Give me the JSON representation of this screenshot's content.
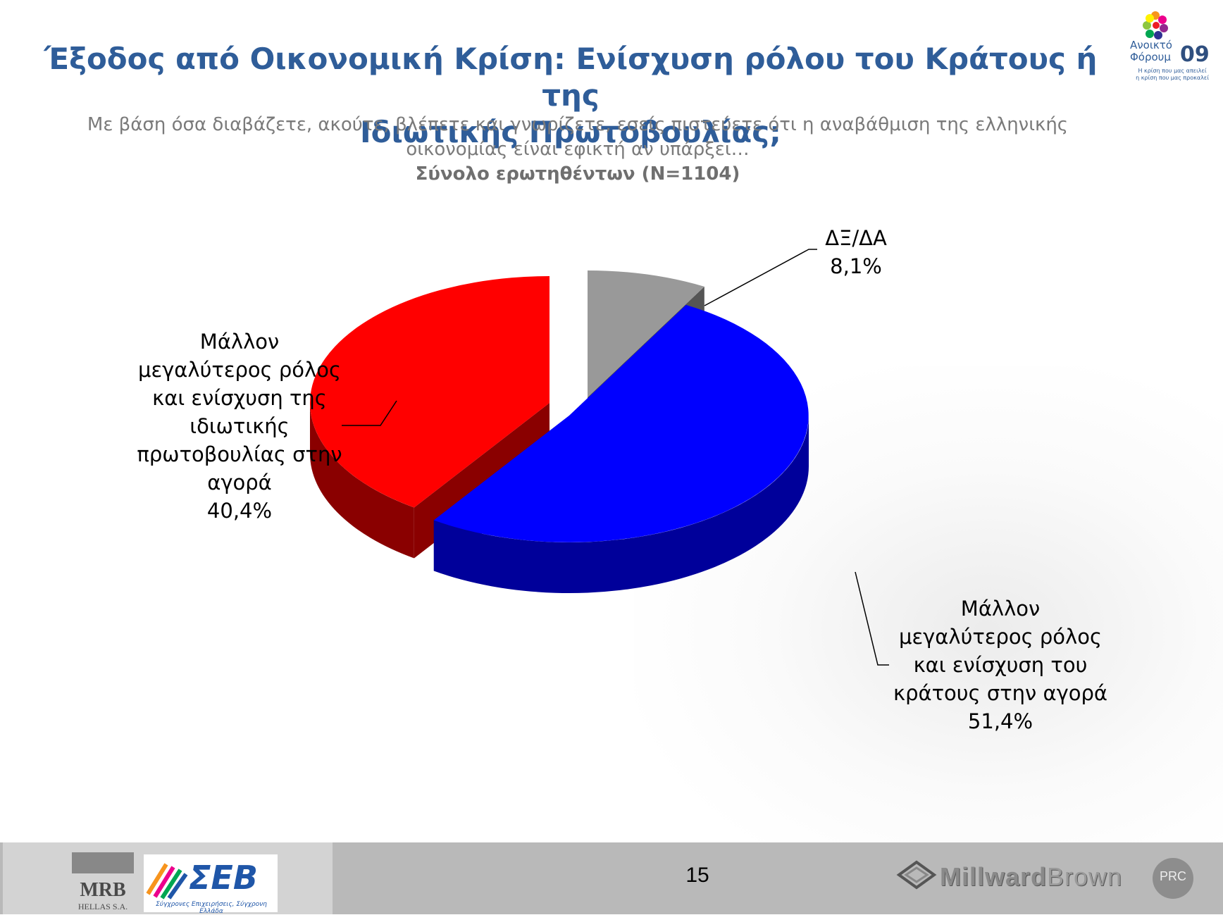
{
  "title": {
    "line1": "Έξοδος από Οικονομική Κρίση: Ενίσχυση ρόλου του Κράτους ή της",
    "line2": "Ιδιωτικής Πρωτοβουλίας;"
  },
  "subtitle": {
    "line1": "Με βάση όσα διαβάζετε, ακούτε, βλέπετε και γνωρίζετε, εσείς πιστεύετε ότι η αναβάθμιση της ελληνικής",
    "line2": "οικονομίας είναι εφικτή αν υπάρξει…",
    "line3": "Σύνολο ερωτηθέντων (N=1104)"
  },
  "forum_logo": {
    "line1": "Ανοικτό",
    "line2": "Φόρουμ",
    "year": "09",
    "tagline1": "Η κρίση που μας απειλεί",
    "tagline2": "η κρίση που μας προκαλεί"
  },
  "chart_data": {
    "type": "pie",
    "style": "3d-exploded",
    "slices": [
      {
        "label_lines": [
          "Μάλλον",
          "μεγαλύτερος ρόλος",
          "και ενίσχυση του",
          "κράτους στην αγορά"
        ],
        "value": 51.4,
        "value_label": "51,4%",
        "color": "#0000ff",
        "side_color": "#00009a"
      },
      {
        "label_lines": [
          "Μάλλον",
          "μεγαλύτερος ρόλος",
          "και ενίσχυση της",
          "ιδιωτικής",
          "πρωτοβουλίας στην",
          "αγορά"
        ],
        "value": 40.4,
        "value_label": "40,4%",
        "color": "#ff0000",
        "side_color": "#8a0000"
      },
      {
        "label_lines": [
          "ΔΞ/ΔΑ"
        ],
        "value": 8.1,
        "value_label": "8,1%",
        "color": "#999999",
        "side_color": "#555555"
      }
    ]
  },
  "footer": {
    "page_number": "15",
    "mrb_logo": "MRB",
    "mrb_sub": "HELLAS S.A.",
    "seb_logo": "ΣΕΒ",
    "seb_tagline": "Σύγχρονες Επιχειρήσεις, Σύγχρονη Ελλάδα",
    "millward_logo_a": "Millward",
    "millward_logo_b": "Brown",
    "prc_logo": "PRC"
  }
}
